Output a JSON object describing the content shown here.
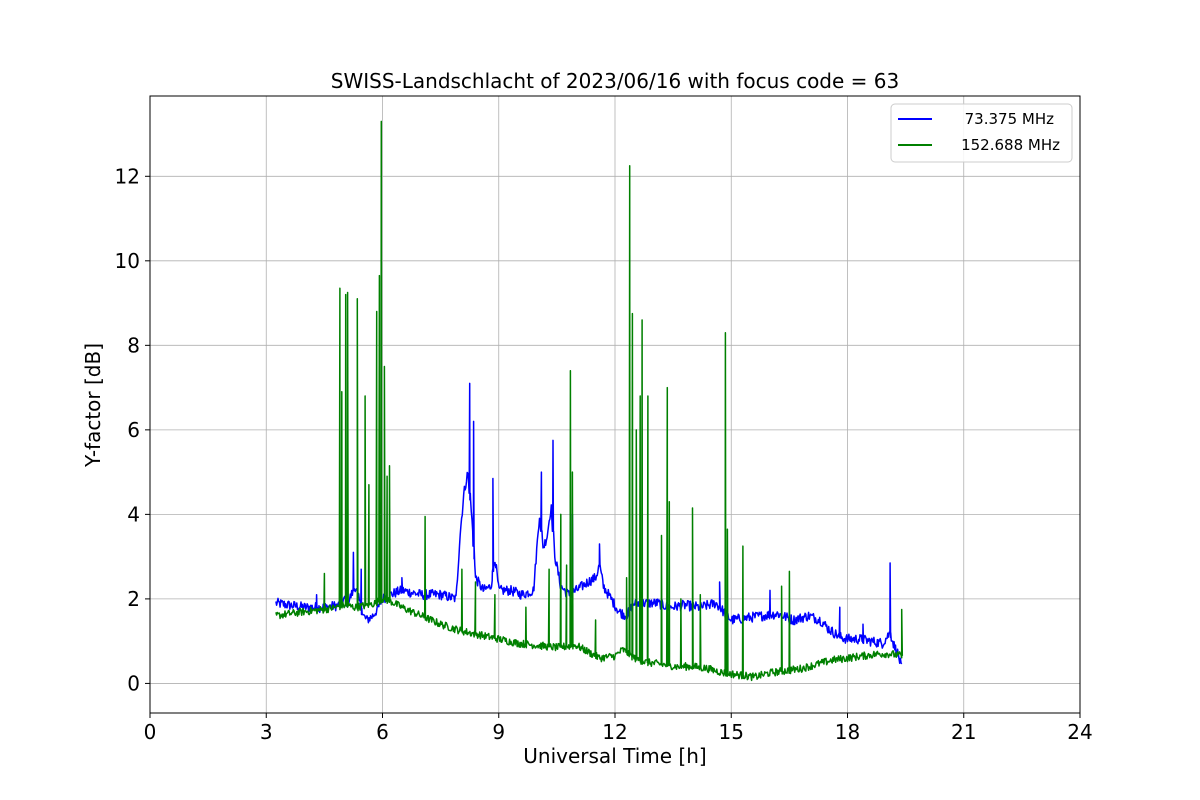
{
  "chart_data": {
    "type": "line",
    "title": "SWISS-Landschlacht of 2023/06/16 with focus code = 63",
    "xlabel": "Universal Time [h]",
    "ylabel": "Y-factor [dB]",
    "xlim": [
      0,
      24
    ],
    "ylim": [
      -0.7,
      13.9
    ],
    "xticks": [
      0,
      3,
      6,
      9,
      12,
      15,
      18,
      21,
      24
    ],
    "yticks": [
      0,
      2,
      4,
      6,
      8,
      10,
      12
    ],
    "grid": true,
    "legend_position": "top-right",
    "series": [
      {
        "name": "73.375 MHz",
        "color": "#0000ff",
        "x": [
          3.25,
          3.6,
          4.0,
          4.5,
          4.9,
          5.0,
          5.1,
          5.3,
          5.5,
          5.6,
          5.75,
          5.9,
          6.0,
          6.2,
          6.5,
          7.0,
          7.5,
          7.9,
          8.0,
          8.1,
          8.2,
          8.3,
          8.4,
          8.6,
          8.8,
          8.9,
          9.0,
          9.3,
          9.6,
          9.9,
          10.05,
          10.15,
          10.25,
          10.35,
          10.45,
          10.6,
          10.8,
          11.0,
          11.3,
          11.5,
          11.6,
          11.7,
          11.9,
          12.1,
          12.3,
          12.5,
          12.8,
          13.1,
          13.4,
          13.8,
          14.2,
          14.6,
          14.8,
          15.0,
          15.4,
          15.8,
          16.2,
          16.6,
          17.0,
          17.3,
          17.5,
          17.8,
          18.0,
          18.3,
          18.6,
          18.9,
          19.1,
          19.2,
          19.3,
          19.4
        ],
        "values": [
          1.9,
          1.85,
          1.8,
          1.8,
          1.85,
          2.0,
          1.9,
          2.3,
          1.6,
          1.5,
          1.6,
          1.8,
          2.0,
          2.1,
          2.2,
          2.1,
          2.1,
          2.0,
          3.5,
          4.5,
          5.0,
          4.0,
          2.5,
          2.2,
          2.3,
          3.0,
          2.2,
          2.2,
          2.1,
          2.2,
          4.0,
          3.2,
          3.5,
          4.2,
          3.0,
          2.3,
          2.1,
          2.2,
          2.4,
          2.5,
          2.8,
          2.3,
          2.0,
          1.7,
          1.6,
          1.9,
          1.9,
          1.9,
          1.8,
          1.85,
          1.8,
          1.9,
          1.7,
          1.5,
          1.55,
          1.6,
          1.65,
          1.5,
          1.6,
          1.5,
          1.3,
          1.1,
          1.05,
          1.05,
          1.0,
          0.95,
          1.2,
          0.9,
          0.7,
          0.35
        ],
        "spikes": [
          [
            4.3,
            2.1
          ],
          [
            5.25,
            3.1
          ],
          [
            5.45,
            2.7
          ],
          [
            6.5,
            2.5
          ],
          [
            8.25,
            7.1
          ],
          [
            8.35,
            6.2
          ],
          [
            8.85,
            4.85
          ],
          [
            10.1,
            5.0
          ],
          [
            10.4,
            5.75
          ],
          [
            10.9,
            4.0
          ],
          [
            11.6,
            3.3
          ],
          [
            14.7,
            2.4
          ],
          [
            16.0,
            2.2
          ],
          [
            17.8,
            1.8
          ],
          [
            18.4,
            1.4
          ],
          [
            19.1,
            2.85
          ]
        ]
      },
      {
        "name": "152.688 MHz",
        "color": "#008000",
        "x": [
          3.25,
          3.6,
          4.0,
          4.5,
          4.8,
          5.0,
          5.3,
          5.6,
          5.8,
          6.0,
          6.2,
          6.5,
          7.0,
          7.5,
          8.0,
          8.5,
          9.0,
          9.5,
          10.0,
          10.5,
          11.0,
          11.3,
          11.6,
          12.0,
          12.2,
          12.5,
          12.8,
          13.2,
          13.6,
          14.0,
          14.4,
          14.8,
          15.2,
          15.6,
          16.0,
          16.4,
          16.8,
          17.2,
          17.6,
          18.0,
          18.4,
          18.8,
          19.1,
          19.4
        ],
        "values": [
          1.6,
          1.65,
          1.7,
          1.75,
          1.8,
          1.85,
          1.8,
          1.85,
          1.9,
          2.0,
          1.95,
          1.8,
          1.6,
          1.4,
          1.25,
          1.15,
          1.05,
          0.95,
          0.9,
          0.85,
          0.9,
          0.75,
          0.6,
          0.65,
          0.8,
          0.6,
          0.5,
          0.45,
          0.4,
          0.4,
          0.35,
          0.25,
          0.2,
          0.15,
          0.25,
          0.3,
          0.35,
          0.45,
          0.55,
          0.6,
          0.65,
          0.7,
          0.7,
          0.65
        ],
        "spikes": [
          [
            4.5,
            2.6
          ],
          [
            4.9,
            9.35
          ],
          [
            4.95,
            6.9
          ],
          [
            5.05,
            9.2
          ],
          [
            5.1,
            9.25
          ],
          [
            5.35,
            9.1
          ],
          [
            5.55,
            6.8
          ],
          [
            5.65,
            4.7
          ],
          [
            5.85,
            8.8
          ],
          [
            5.92,
            9.65
          ],
          [
            5.97,
            13.3
          ],
          [
            6.05,
            7.5
          ],
          [
            6.12,
            4.9
          ],
          [
            6.18,
            5.15
          ],
          [
            7.1,
            3.95
          ],
          [
            8.05,
            2.7
          ],
          [
            8.4,
            2.4
          ],
          [
            8.9,
            2.1
          ],
          [
            9.7,
            1.8
          ],
          [
            10.3,
            2.7
          ],
          [
            10.6,
            4.0
          ],
          [
            10.75,
            2.8
          ],
          [
            10.85,
            7.4
          ],
          [
            10.9,
            5.0
          ],
          [
            11.5,
            1.5
          ],
          [
            12.3,
            2.5
          ],
          [
            12.38,
            12.25
          ],
          [
            12.45,
            8.75
          ],
          [
            12.55,
            6.0
          ],
          [
            12.65,
            6.8
          ],
          [
            12.7,
            8.6
          ],
          [
            12.85,
            6.8
          ],
          [
            13.2,
            3.5
          ],
          [
            13.35,
            7.0
          ],
          [
            13.4,
            4.3
          ],
          [
            13.7,
            2.0
          ],
          [
            14.0,
            4.15
          ],
          [
            14.2,
            2.1
          ],
          [
            14.85,
            8.3
          ],
          [
            14.9,
            3.65
          ],
          [
            15.3,
            3.25
          ],
          [
            16.3,
            2.3
          ],
          [
            16.5,
            2.65
          ],
          [
            19.4,
            1.75
          ]
        ]
      }
    ]
  }
}
